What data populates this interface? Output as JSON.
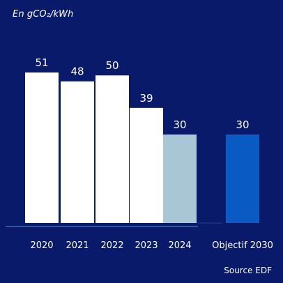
{
  "chart_data": {
    "type": "bar",
    "unit_label": "En gCO₂/kWh",
    "source": "Source EDF",
    "categories": [
      "2020",
      "2021",
      "2022",
      "2023",
      "2024",
      "Objectif 2030"
    ],
    "values": [
      51,
      48,
      50,
      39,
      30,
      30
    ],
    "value_labels": [
      "51",
      "48",
      "50",
      "39",
      "30",
      "30"
    ],
    "bar_colors": [
      "#ffffff",
      "#ffffff",
      "#ffffff",
      "#ffffff",
      "#a9c6d6",
      "#0a5ac4"
    ],
    "ylim": [
      0,
      51
    ],
    "grid": false,
    "legend": "none"
  },
  "colors": {
    "background": "#0a1a6b",
    "axis_line": "#3a64b8"
  }
}
